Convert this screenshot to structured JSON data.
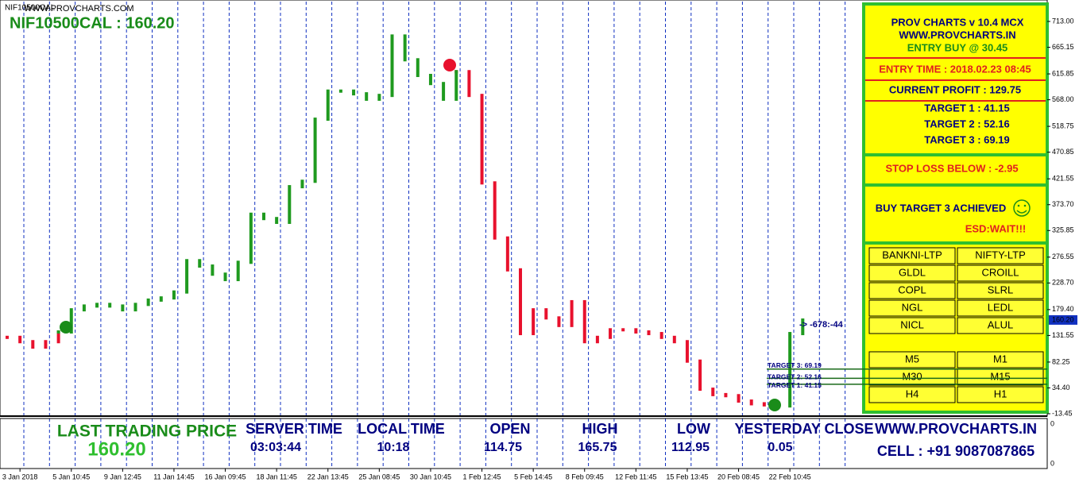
{
  "header": {
    "symbol": "NIF10500CAL",
    "watermark": "WWW.PROVCHARTS.COM",
    "title": "NIF10500CAL : 160.20"
  },
  "chart_data": {
    "type": "candlestick",
    "categories": [
      null,
      "3 Jan 2018",
      null,
      null,
      null,
      "5 Jan 10:45",
      null,
      null,
      null,
      "9 Jan 12:45",
      null,
      null,
      null,
      "11 Jan 14:45",
      null,
      null,
      null,
      "16 Jan 09:45",
      null,
      null,
      null,
      "18 Jan 11:45",
      null,
      null,
      null,
      "22 Jan 13:45",
      null,
      null,
      null,
      "25 Jan 08:45",
      null,
      null,
      null,
      "30 Jan 10:45",
      null,
      null,
      null,
      "1 Feb 12:45",
      null,
      null,
      null,
      "5 Feb 14:45",
      null,
      null,
      null,
      "8 Feb 09:45",
      null,
      null,
      null,
      "12 Feb 11:45",
      null,
      null,
      null,
      "15 Feb 13:45",
      null,
      null,
      null,
      "20 Feb 08:45",
      null,
      null,
      null,
      "22 Feb 10:45",
      null,
      null,
      null,
      null,
      null
    ],
    "series": [
      {
        "color": "#e8112d",
        "values": [
          128,
          120,
          110,
          120,
          138,
          null,
          null,
          null,
          null,
          null,
          null,
          null,
          null,
          null,
          null,
          null,
          null,
          null,
          null,
          null,
          null,
          null,
          null,
          null,
          null,
          null,
          null,
          null,
          null,
          null,
          null,
          null,
          null,
          null,
          null,
          620,
          576,
          414,
          312,
          253,
          135,
          179,
          164,
          150,
          194,
          120,
          128,
          142,
          142,
          138,
          135,
          128,
          120,
          84,
          32,
          22,
          20,
          10,
          5,
          3,
          1,
          null,
          null,
          null,
          null,
          null,
          null
        ]
      },
      {
        "color": "#1f9a1f",
        "values": [
          null,
          null,
          null,
          null,
          138,
          179,
          186,
          189,
          186,
          179,
          189,
          197,
          201,
          212,
          270,
          260,
          245,
          235,
          267,
          356,
          348,
          341,
          407,
          417,
          532,
          584,
          584,
          579,
          569,
          576,
          686,
          642,
          613,
          598,
          569,
          620,
          null,
          null,
          null,
          null,
          null,
          null,
          null,
          null,
          null,
          null,
          null,
          null,
          null,
          null,
          null,
          null,
          null,
          null,
          null,
          null,
          null,
          null,
          null,
          null,
          1,
          135,
          160,
          null,
          null,
          null,
          null
        ]
      }
    ],
    "ylim": [
      -13.45,
      713
    ],
    "yticks": [
      {
        "value": 713,
        "label": "713.00"
      },
      {
        "value": 665.15,
        "label": "665.15"
      },
      {
        "value": 615.85,
        "label": "615.85"
      },
      {
        "value": 568,
        "label": "568.00"
      },
      {
        "value": 518.75,
        "label": "518.75"
      },
      {
        "value": 470.85,
        "label": "470.85"
      },
      {
        "value": 421.55,
        "label": "421.55"
      },
      {
        "value": 373.7,
        "label": "373.70"
      },
      {
        "value": 325.85,
        "label": "325.85"
      },
      {
        "value": 276.55,
        "label": "276.55"
      },
      {
        "value": 228.7,
        "label": "228.70"
      },
      {
        "value": 179.4,
        "label": "179.40"
      },
      {
        "value": 131.55,
        "label": "131.55"
      },
      {
        "value": 82.25,
        "label": "82.25"
      },
      {
        "value": 34.4,
        "label": "34.40"
      },
      {
        "value": -13.45,
        "label": "-13.45"
      }
    ],
    "last_price": {
      "value": 160.2,
      "label": "160.20"
    },
    "annotation": "-> -678:-44",
    "target_lines": [
      {
        "value": 69.19,
        "label": "TARGET 3: 69.19"
      },
      {
        "value": 52.16,
        "label": "TARGET 2: 52.16"
      },
      {
        "value": 41.15,
        "label": "TARGET 1: 41.15"
      }
    ]
  },
  "lower_axis": [
    "0",
    "0"
  ],
  "panel": {
    "title": "PROV CHARTS v 10.4 MCX",
    "website": "WWW.PROVCHARTS.IN",
    "entry": "ENTRY BUY @ 30.45",
    "entry_time": "ENTRY TIME : 2018.02.23 08:45",
    "current_profit": "CURRENT PROFIT : 129.75",
    "targets": [
      "TARGET 1 : 41.15",
      "TARGET 2 : 52.16",
      "TARGET 3 : 69.19"
    ],
    "stop_loss": "STOP LOSS BELOW : -2.95",
    "status": "BUY TARGET 3 ACHIEVED",
    "esd": "ESD:WAIT!!!",
    "symbols": [
      "BANKNI-LTP",
      "NIFTY-LTP",
      "GLDL",
      "CROILL",
      "COPL",
      "SLRL",
      "NGL",
      "LEDL",
      "NICL",
      "ALUL"
    ],
    "timeframes": [
      "M5",
      "M1",
      "M30",
      "M15",
      "H4",
      "H1"
    ]
  },
  "footer": {
    "ltp_label": "LAST TRADING PRICE",
    "ltp": "160.20",
    "fields": [
      {
        "label": "SERVER TIME",
        "value": "03:03:44"
      },
      {
        "label": "LOCAL TIME",
        "value": "10:18"
      },
      {
        "label": "OPEN",
        "value": "114.75"
      },
      {
        "label": "HIGH",
        "value": "165.75"
      },
      {
        "label": "LOW",
        "value": "112.95"
      },
      {
        "label": "YESTERDAY CLOSE",
        "value": "0.05"
      }
    ],
    "website": "WWW.PROVCHARTS.IN",
    "cell": "CELL : +91 9087087865"
  }
}
